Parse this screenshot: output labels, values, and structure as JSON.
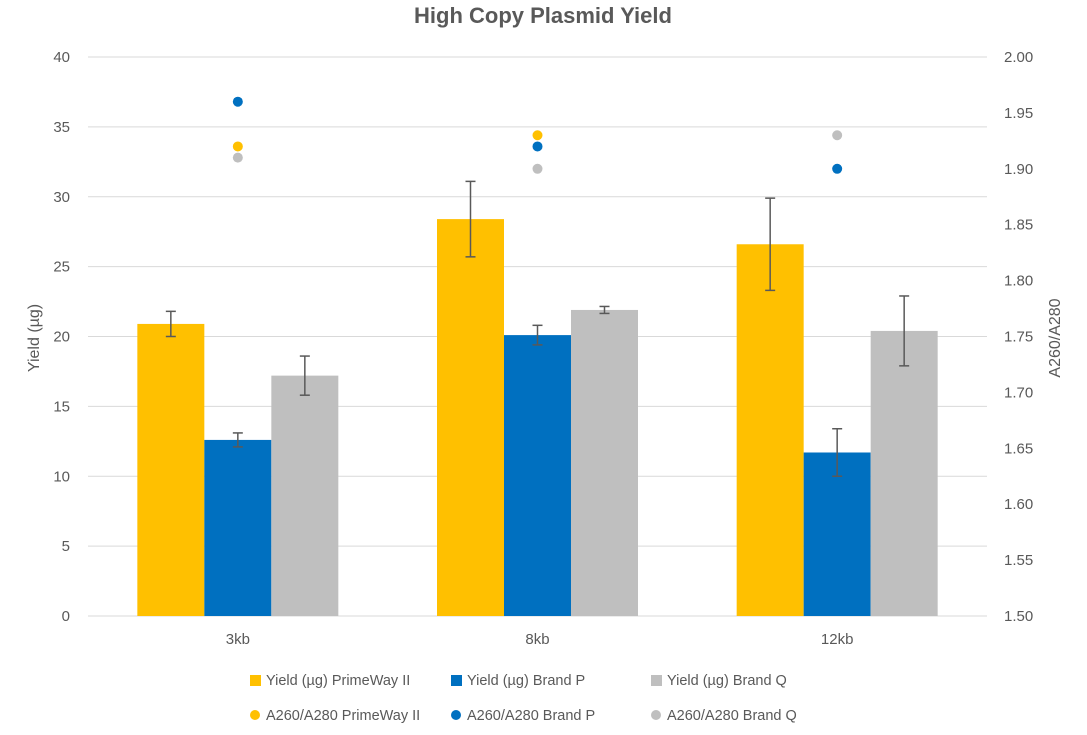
{
  "chart_data": {
    "type": "bar",
    "title": "High Copy Plasmid Yield",
    "categories": [
      "3kb",
      "8kb",
      "12kb"
    ],
    "ylabel": "Yield (µg)",
    "y2label": "A260/A280",
    "ylim": [
      0,
      40
    ],
    "y2lim": [
      1.5,
      2.0
    ],
    "yticks": [
      "0",
      "5",
      "10",
      "15",
      "20",
      "25",
      "30",
      "35",
      "40"
    ],
    "y2ticks": [
      "1.50",
      "1.55",
      "1.60",
      "1.65",
      "1.70",
      "1.75",
      "1.80",
      "1.85",
      "1.90",
      "1.95",
      "2.00"
    ],
    "grid": true,
    "legend_position": "bottom",
    "series": [
      {
        "name": "Yield (µg) PrimeWay II",
        "kind": "bar",
        "axis": "left",
        "color": "#FFC000",
        "values": [
          20.9,
          28.4,
          26.6
        ],
        "errors": [
          0.9,
          2.7,
          3.3
        ]
      },
      {
        "name": "Yield (µg) Brand P",
        "kind": "bar",
        "axis": "left",
        "color": "#0070C0",
        "values": [
          12.6,
          20.1,
          11.7
        ],
        "errors": [
          0.5,
          0.7,
          1.7
        ]
      },
      {
        "name": "Yield (µg) Brand Q",
        "kind": "bar",
        "axis": "left",
        "color": "#BFBFBF",
        "values": [
          17.2,
          21.9,
          20.4
        ],
        "errors": [
          1.4,
          0.25,
          2.5
        ]
      },
      {
        "name": "A260/A280 PrimeWay II",
        "kind": "scatter",
        "axis": "right",
        "color": "#FFC000",
        "values": [
          1.92,
          1.93,
          null
        ]
      },
      {
        "name": "A260/A280 Brand P",
        "kind": "scatter",
        "axis": "right",
        "color": "#0070C0",
        "values": [
          1.96,
          1.92,
          1.9
        ]
      },
      {
        "name": "A260/A280 Brand Q",
        "kind": "scatter",
        "axis": "right",
        "color": "#BFBFBF",
        "values": [
          1.91,
          1.9,
          1.93
        ]
      }
    ]
  }
}
